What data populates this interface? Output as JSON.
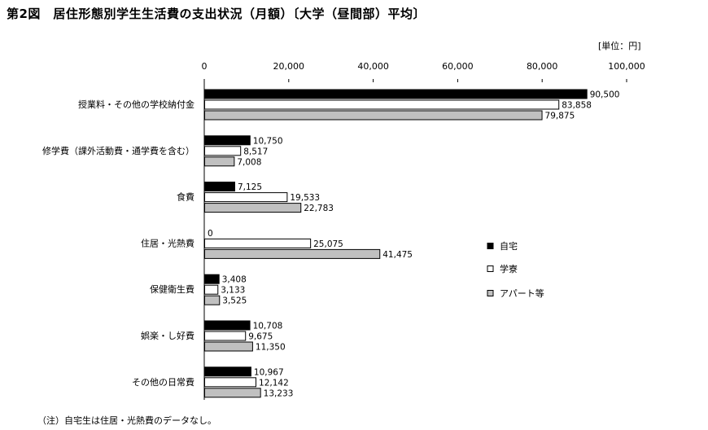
{
  "page": {
    "title": "第2図　居住形態別学生生活費の支出状況（月額）〔大学（昼間部）平均〕",
    "unit": "[単位：円]",
    "note": "（注）自宅生は住居・光熱費のデータなし。"
  },
  "chart_data": {
    "type": "bar",
    "orientation": "horizontal",
    "title": "第2図　居住形態別学生生活費の支出状況（月額）〔大学（昼間部）平均〕",
    "unit": "[単位：円]",
    "xlim": [
      0,
      100000
    ],
    "x_ticks": [
      0,
      20000,
      40000,
      60000,
      80000,
      100000
    ],
    "x_tick_labels": [
      "0",
      "20,000",
      "40,000",
      "60,000",
      "80,000",
      "100,000"
    ],
    "x_axis_position": "top",
    "grid": false,
    "legend_position": "right",
    "categories": [
      "授業料・その他の学校納付金",
      "修学費（課外活動費・通学費を含む）",
      "食費",
      "住居・光熱費",
      "保健衛生費",
      "娯楽・し好費",
      "その他の日常費"
    ],
    "series": [
      {
        "name": "自宅",
        "color": "#000000",
        "values": [
          90500,
          10750,
          7125,
          0,
          3408,
          10708,
          10967
        ],
        "labels": [
          "90,500",
          "10,750",
          "7,125",
          "0",
          "3,408",
          "10,708",
          "10,967"
        ]
      },
      {
        "name": "学寮",
        "color": "#ffffff",
        "values": [
          83858,
          8517,
          19533,
          25075,
          3133,
          9675,
          12142
        ],
        "labels": [
          "83,858",
          "8,517",
          "19,533",
          "25,075",
          "3,133",
          "9,675",
          "12,142"
        ]
      },
      {
        "name": "アパート等",
        "color": "#c0c0c0",
        "values": [
          79875,
          7008,
          22783,
          41475,
          3525,
          11350,
          13233
        ],
        "labels": [
          "79,875",
          "7,008",
          "22,783",
          "41,475",
          "3,525",
          "11,350",
          "13,233"
        ]
      }
    ]
  }
}
